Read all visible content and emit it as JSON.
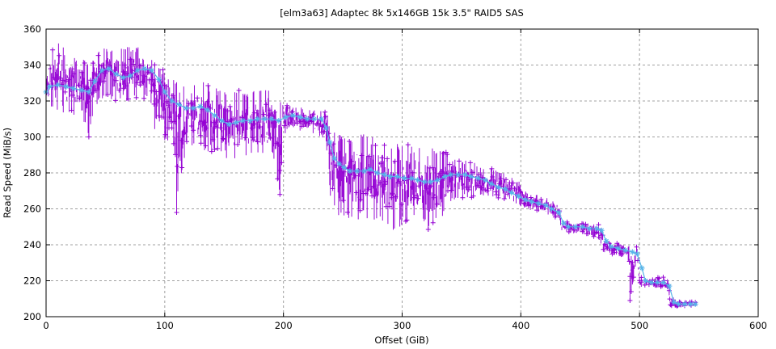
{
  "chart_data": {
    "type": "line",
    "title": "[elm3a63] Adaptec 8k 5x146GB 15k 3.5\" RAID5 SAS",
    "xlabel": "Offset (GiB)",
    "ylabel": "Read Speed (MiB/s)",
    "xlim": [
      0,
      600
    ],
    "ylim": [
      200,
      360
    ],
    "x_ticks": [
      0,
      100,
      200,
      300,
      400,
      500,
      600
    ],
    "x_tick_labels": [
      "0",
      "100",
      "200",
      "300",
      "400",
      "500",
      "600"
    ],
    "y_ticks": [
      200,
      220,
      240,
      260,
      280,
      300,
      320,
      340,
      360
    ],
    "y_tick_labels": [
      "200",
      "220",
      "240",
      "260",
      "280",
      "300",
      "320",
      "340",
      "360"
    ],
    "grid": true,
    "legend": "none",
    "colors": {
      "raw": "#9400d3",
      "smoothed": "#56b4e9",
      "grid": "#a0a0a0",
      "frame": "#000000"
    },
    "series": [
      {
        "name": "raw",
        "style": "errorbars-with-plus-markers",
        "envelope": [
          [
            0,
            314,
            344
          ],
          [
            10,
            314,
            354
          ],
          [
            20,
            312,
            346
          ],
          [
            30,
            312,
            344
          ],
          [
            36,
            300,
            340
          ],
          [
            42,
            318,
            348
          ],
          [
            50,
            320,
            350
          ],
          [
            60,
            320,
            350
          ],
          [
            70,
            320,
            350
          ],
          [
            80,
            322,
            350
          ],
          [
            88,
            320,
            348
          ],
          [
            92,
            300,
            342
          ],
          [
            100,
            298,
            338
          ],
          [
            108,
            296,
            334
          ],
          [
            110,
            258,
            332
          ],
          [
            118,
            294,
            332
          ],
          [
            126,
            294,
            332
          ],
          [
            134,
            292,
            330
          ],
          [
            142,
            290,
            328
          ],
          [
            150,
            288,
            326
          ],
          [
            158,
            286,
            326
          ],
          [
            166,
            290,
            326
          ],
          [
            174,
            288,
            326
          ],
          [
            182,
            288,
            326
          ],
          [
            190,
            290,
            326
          ],
          [
            197,
            268,
            324
          ],
          [
            200,
            300,
            318
          ],
          [
            210,
            302,
            317
          ],
          [
            220,
            302,
            316
          ],
          [
            230,
            300,
            316
          ],
          [
            236,
            296,
            316
          ],
          [
            240,
            262,
            306
          ],
          [
            246,
            254,
            304
          ],
          [
            254,
            254,
            302
          ],
          [
            262,
            254,
            302
          ],
          [
            272,
            254,
            302
          ],
          [
            282,
            252,
            300
          ],
          [
            292,
            248,
            298
          ],
          [
            302,
            250,
            296
          ],
          [
            312,
            252,
            296
          ],
          [
            322,
            248,
            294
          ],
          [
            330,
            250,
            294
          ],
          [
            334,
            252,
            294
          ],
          [
            340,
            264,
            290
          ],
          [
            350,
            266,
            288
          ],
          [
            360,
            266,
            286
          ],
          [
            370,
            266,
            284
          ],
          [
            380,
            266,
            282
          ],
          [
            392,
            264,
            278
          ],
          [
            398,
            262,
            276
          ],
          [
            404,
            260,
            270
          ],
          [
            414,
            258,
            268
          ],
          [
            424,
            256,
            266
          ],
          [
            432,
            254,
            264
          ],
          [
            434,
            248,
            254
          ],
          [
            444,
            246,
            252
          ],
          [
            454,
            246,
            252
          ],
          [
            464,
            244,
            252
          ],
          [
            468,
            240,
            250
          ],
          [
            470,
            236,
            242
          ],
          [
            480,
            234,
            241
          ],
          [
            490,
            232,
            240
          ],
          [
            492,
            209,
            240
          ],
          [
            498,
            232,
            240
          ],
          [
            500,
            216,
            222
          ],
          [
            510,
            216,
            222
          ],
          [
            520,
            216,
            222
          ],
          [
            524,
            216,
            221
          ],
          [
            526,
            205,
            210
          ],
          [
            536,
            205,
            209
          ],
          [
            548,
            205,
            209
          ]
        ]
      },
      {
        "name": "smoothed",
        "style": "linespoints-star",
        "x": [
          0,
          3,
          10,
          17,
          23,
          30,
          36,
          41,
          47,
          53,
          59,
          65,
          71,
          77,
          83,
          89,
          95,
          100,
          106,
          112,
          118,
          124,
          130,
          136,
          142,
          148,
          154,
          160,
          166,
          172,
          178,
          184,
          190,
          196,
          202,
          208,
          214,
          220,
          226,
          232,
          236,
          239,
          243,
          247,
          251,
          256,
          262,
          268,
          273,
          279,
          285,
          290,
          296,
          302,
          308,
          313,
          319,
          324,
          330,
          336,
          341,
          347,
          353,
          358,
          364,
          370,
          375,
          381,
          387,
          392,
          398,
          404,
          409,
          415,
          421,
          426,
          432,
          436,
          440,
          446,
          452,
          458,
          464,
          468,
          472,
          476,
          482,
          488,
          494,
          498,
          502,
          505,
          510,
          515,
          520,
          525,
          529,
          533,
          538,
          543,
          547
        ],
        "values": [
          325,
          328,
          329,
          328,
          327,
          326,
          325,
          331,
          337,
          338,
          335,
          333,
          334,
          337,
          338,
          337,
          332,
          325,
          320,
          318,
          316,
          316,
          317,
          315,
          312,
          309,
          307,
          308,
          309,
          309,
          310,
          310,
          310,
          309,
          311,
          312,
          311,
          310,
          310,
          310,
          305,
          297,
          288,
          285,
          283,
          281,
          281,
          281,
          282,
          280,
          279,
          278,
          278,
          277,
          277,
          276,
          275,
          275,
          276,
          278,
          279,
          279,
          279,
          278,
          277,
          276,
          274,
          272,
          271,
          269,
          267,
          265,
          264,
          263,
          262,
          260,
          258,
          252,
          250,
          250,
          250,
          249,
          249,
          248,
          242,
          239,
          238,
          237,
          236,
          235,
          227,
          220,
          219,
          219,
          219,
          217,
          208,
          207,
          207,
          207,
          207
        ]
      }
    ]
  }
}
